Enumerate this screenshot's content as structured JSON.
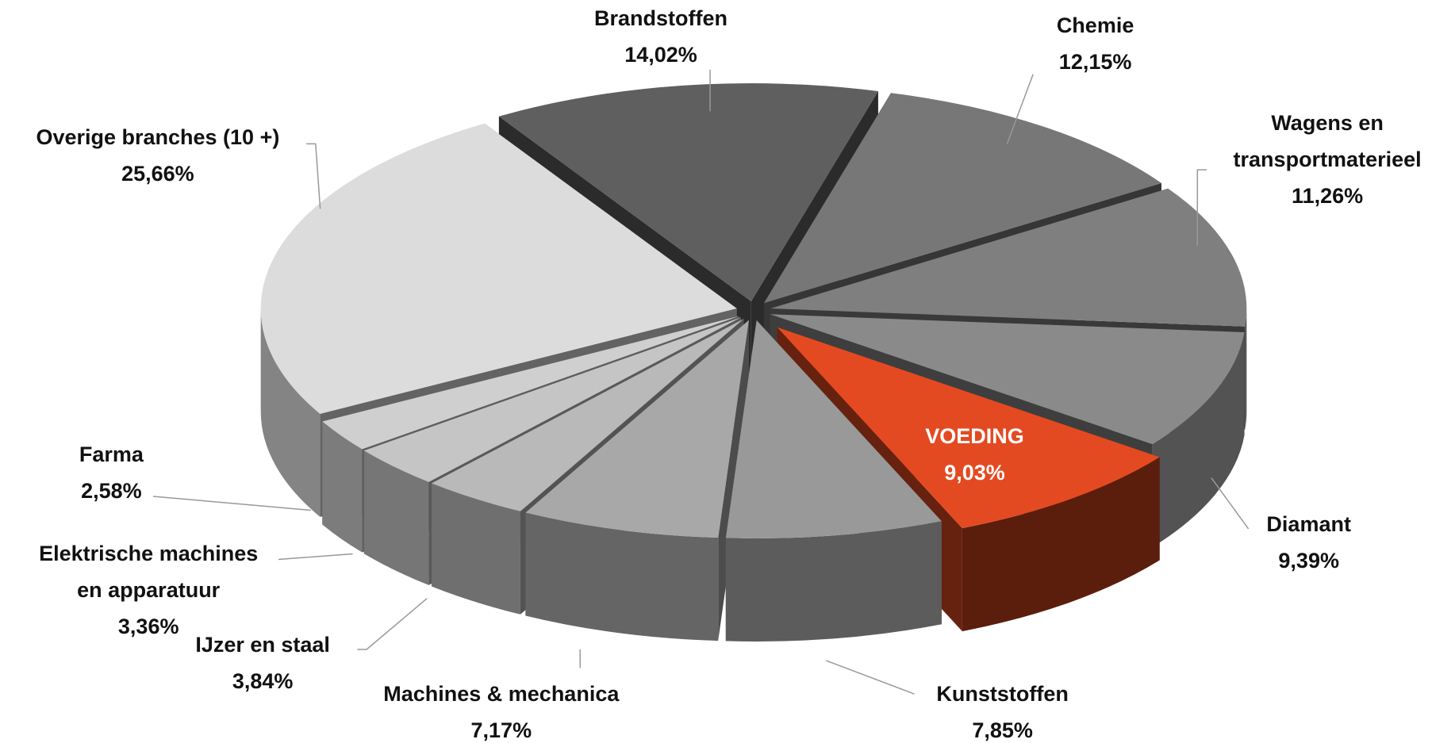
{
  "chart_data": {
    "type": "pie",
    "categories": [
      "Brandstoffen",
      "Chemie",
      "Wagens en transportmaterieel",
      "Diamant",
      "VOEDING",
      "Kunststoffen",
      "Machines & mechanica",
      "IJzer en staal",
      "Elektrische machines en apparatuur",
      "Farma",
      "Overige branches (10 +)"
    ],
    "values": [
      14.02,
      12.15,
      11.26,
      9.39,
      9.03,
      7.85,
      7.17,
      3.84,
      3.36,
      2.58,
      25.66
    ],
    "value_labels": [
      "14,02%",
      "12,15%",
      "11,26%",
      "9,39%",
      "9,03%",
      "7,85%",
      "7,17%",
      "3,84%",
      "3,36%",
      "2,58%",
      "25,66%"
    ],
    "colors": [
      "#5f5f5f",
      "#777777",
      "#7f7f7f",
      "#8a8a8a",
      "#e44a21",
      "#999999",
      "#a8a8a8",
      "#b9b9b9",
      "#c5c5c5",
      "#cfcfcf",
      "#dcdcdc"
    ]
  }
}
